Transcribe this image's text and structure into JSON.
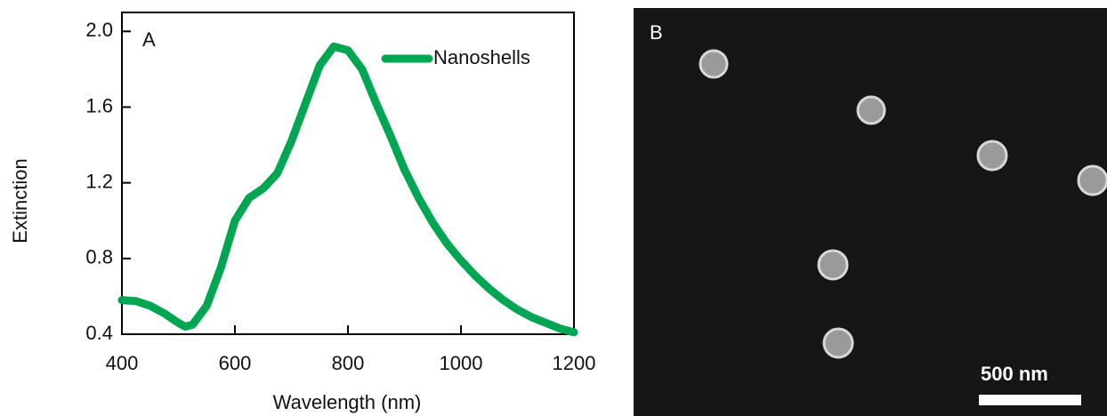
{
  "chart_data": {
    "type": "line",
    "annotation": "A",
    "xlabel": "Wavelength (nm)",
    "ylabel": "Extinction",
    "x": [
      400,
      425,
      450,
      475,
      500,
      512,
      525,
      550,
      575,
      600,
      625,
      650,
      675,
      700,
      725,
      750,
      775,
      800,
      825,
      850,
      875,
      900,
      925,
      950,
      975,
      1000,
      1025,
      1050,
      1075,
      1100,
      1125,
      1150,
      1175,
      1200
    ],
    "series": [
      {
        "name": "Nanoshells",
        "color": "#00a651",
        "values": [
          0.58,
          0.575,
          0.55,
          0.51,
          0.46,
          0.44,
          0.45,
          0.55,
          0.75,
          1.0,
          1.12,
          1.17,
          1.25,
          1.42,
          1.62,
          1.82,
          1.92,
          1.9,
          1.8,
          1.62,
          1.45,
          1.27,
          1.12,
          0.99,
          0.88,
          0.79,
          0.71,
          0.64,
          0.58,
          0.53,
          0.49,
          0.46,
          0.43,
          0.41
        ]
      }
    ],
    "xlim": [
      400,
      1200
    ],
    "xticks": [
      400,
      600,
      800,
      1000,
      1200
    ],
    "ylim": [
      0.4,
      2.1
    ],
    "yticks": [
      {
        "value": 0.4,
        "label": "0.4"
      },
      {
        "value": 0.8,
        "label": "0.8"
      },
      {
        "value": 1.2,
        "label": "1.2"
      },
      {
        "value": 1.6,
        "label": "1.6"
      },
      {
        "value": 2.0,
        "label": "2.0"
      }
    ],
    "legend": "upper right"
  },
  "image": {
    "label": "B",
    "scale_bar": "500 nm"
  }
}
